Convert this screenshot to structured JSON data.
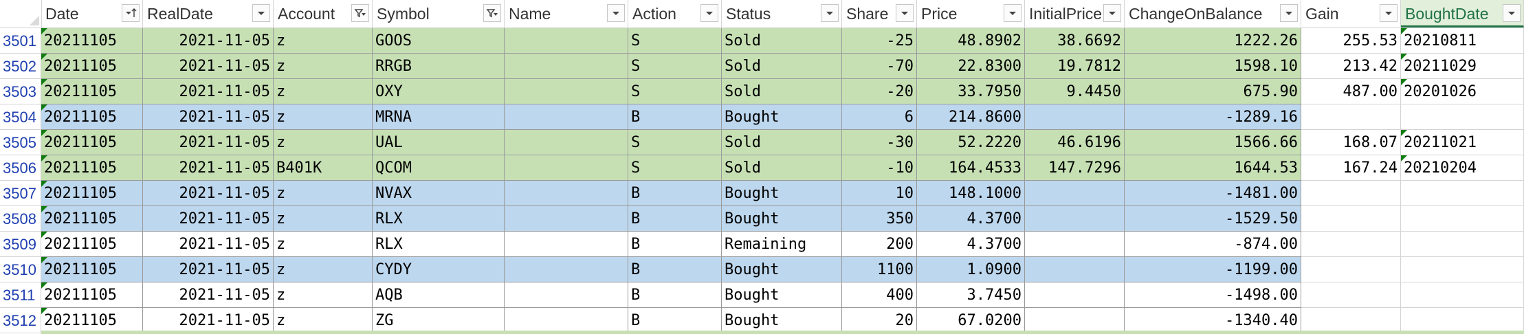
{
  "colors": {
    "sold_fill": "#c6e0b4",
    "bought_fill": "#bdd7ee",
    "plain_fill": "#ffffff",
    "selected_header_text": "#217346",
    "row_number_text": "#1f3fb0",
    "error_triangle": "#107c10"
  },
  "columns": [
    {
      "key": "date",
      "label": "Date",
      "icon": "sort-filter-icon"
    },
    {
      "key": "realdate",
      "label": "RealDate",
      "icon": "dropdown-icon"
    },
    {
      "key": "account",
      "label": "Account",
      "icon": "filter-icon"
    },
    {
      "key": "symbol",
      "label": "Symbol",
      "icon": "filter-icon"
    },
    {
      "key": "name",
      "label": "Name",
      "icon": "dropdown-icon"
    },
    {
      "key": "action",
      "label": "Action",
      "icon": "dropdown-icon"
    },
    {
      "key": "status",
      "label": "Status",
      "icon": "dropdown-icon"
    },
    {
      "key": "share",
      "label": "Share",
      "icon": "dropdown-icon"
    },
    {
      "key": "price",
      "label": "Price",
      "icon": "dropdown-icon"
    },
    {
      "key": "initialprice",
      "label": "InitialPrice",
      "icon": "dropdown-icon"
    },
    {
      "key": "changeonbalance",
      "label": "ChangeOnBalance",
      "icon": "dropdown-icon"
    },
    {
      "key": "gain",
      "label": "Gain",
      "icon": "dropdown-icon"
    },
    {
      "key": "boughtdate",
      "label": "BoughtDate",
      "icon": "dropdown-icon",
      "selected": true
    }
  ],
  "rows": [
    {
      "num": "3501",
      "fill": "sold",
      "cells": [
        "20211105",
        "2021-11-05",
        "z",
        "GOOS",
        "",
        "S",
        "Sold",
        "-25",
        "48.8902",
        "38.6692",
        "1222.26",
        "255.53",
        "20210811"
      ]
    },
    {
      "num": "3502",
      "fill": "sold",
      "cells": [
        "20211105",
        "2021-11-05",
        "z",
        "RRGB",
        "",
        "S",
        "Sold",
        "-70",
        "22.8300",
        "19.7812",
        "1598.10",
        "213.42",
        "20211029"
      ]
    },
    {
      "num": "3503",
      "fill": "sold",
      "cells": [
        "20211105",
        "2021-11-05",
        "z",
        "OXY",
        "",
        "S",
        "Sold",
        "-20",
        "33.7950",
        "9.4450",
        "675.90",
        "487.00",
        "20201026"
      ]
    },
    {
      "num": "3504",
      "fill": "bought",
      "cells": [
        "20211105",
        "2021-11-05",
        "z",
        "MRNA",
        "",
        "B",
        "Bought",
        "6",
        "214.8600",
        "",
        "-1289.16",
        "",
        ""
      ]
    },
    {
      "num": "3505",
      "fill": "sold",
      "cells": [
        "20211105",
        "2021-11-05",
        "z",
        "UAL",
        "",
        "S",
        "Sold",
        "-30",
        "52.2220",
        "46.6196",
        "1566.66",
        "168.07",
        "20211021"
      ]
    },
    {
      "num": "3506",
      "fill": "sold",
      "cells": [
        "20211105",
        "2021-11-05",
        "B401K",
        "QCOM",
        "",
        "S",
        "Sold",
        "-10",
        "164.4533",
        "147.7296",
        "1644.53",
        "167.24",
        "20210204"
      ]
    },
    {
      "num": "3507",
      "fill": "bought",
      "cells": [
        "20211105",
        "2021-11-05",
        "z",
        "NVAX",
        "",
        "B",
        "Bought",
        "10",
        "148.1000",
        "",
        "-1481.00",
        "",
        ""
      ]
    },
    {
      "num": "3508",
      "fill": "bought",
      "cells": [
        "20211105",
        "2021-11-05",
        "z",
        "RLX",
        "",
        "B",
        "Bought",
        "350",
        "4.3700",
        "",
        "-1529.50",
        "",
        ""
      ]
    },
    {
      "num": "3509",
      "fill": "plain",
      "cells": [
        "20211105",
        "2021-11-05",
        "z",
        "RLX",
        "",
        "B",
        "Remaining",
        "200",
        "4.3700",
        "",
        "-874.00",
        "",
        ""
      ]
    },
    {
      "num": "3510",
      "fill": "bought",
      "cells": [
        "20211105",
        "2021-11-05",
        "z",
        "CYDY",
        "",
        "B",
        "Bought",
        "1100",
        "1.0900",
        "",
        "-1199.00",
        "",
        ""
      ]
    },
    {
      "num": "3511",
      "fill": "plain",
      "cells": [
        "20211105",
        "2021-11-05",
        "z",
        "AQB",
        "",
        "B",
        "Bought",
        "400",
        "3.7450",
        "",
        "-1498.00",
        "",
        ""
      ]
    },
    {
      "num": "3512",
      "fill": "plain",
      "cells": [
        "20211105",
        "2021-11-05",
        "z",
        "ZG",
        "",
        "B",
        "Bought",
        "20",
        "67.0200",
        "",
        "-1340.40",
        "",
        ""
      ]
    }
  ]
}
